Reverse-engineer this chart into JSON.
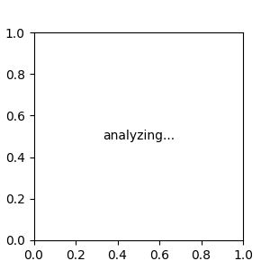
{
  "bg_color": "#ebebeb",
  "bond_color": "#2d7265",
  "o_color": "#cc1111",
  "n_color": "#1111cc",
  "font_size": 7.5,
  "lw": 1.3
}
